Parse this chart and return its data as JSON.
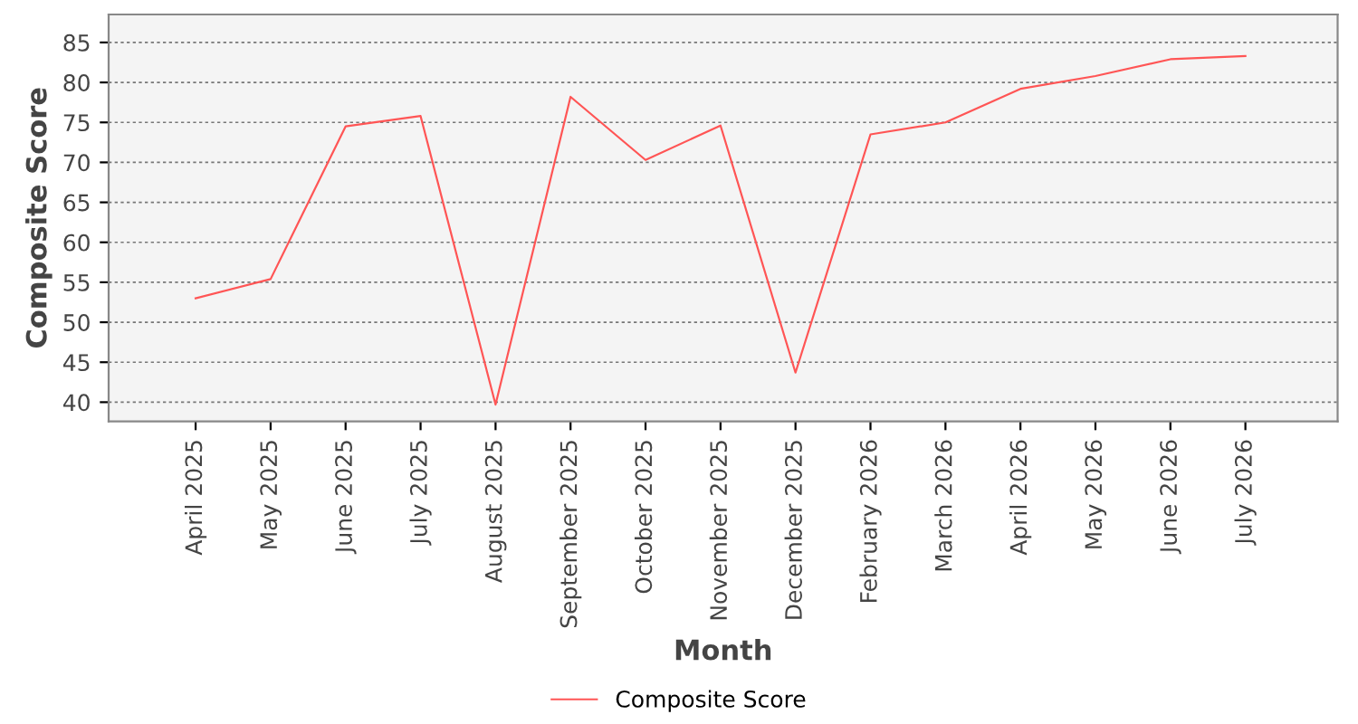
{
  "chart_data": {
    "type": "line",
    "xlabel": "Month",
    "ylabel": "Composite Score",
    "categories": [
      "April 2025",
      "May 2025",
      "June 2025",
      "July 2025",
      "August 2025",
      "September 2025",
      "October 2025",
      "November 2025",
      "December 2025",
      "February 2026",
      "March 2026",
      "April 2026",
      "May 2026",
      "June 2026",
      "July 2026"
    ],
    "series": [
      {
        "name": "Composite Score",
        "color": "#ff5555",
        "values": [
          53.0,
          55.4,
          74.5,
          75.8,
          39.7,
          78.2,
          70.3,
          74.6,
          43.7,
          73.5,
          75.0,
          79.2,
          80.8,
          82.9,
          83.3
        ]
      }
    ],
    "ylim": [
      37.6,
      88.5
    ],
    "yticks": [
      40,
      45,
      50,
      55,
      60,
      65,
      70,
      75,
      80,
      85
    ],
    "grid": "y",
    "legend": "bottom",
    "marker": "none",
    "line_style": "solid"
  }
}
